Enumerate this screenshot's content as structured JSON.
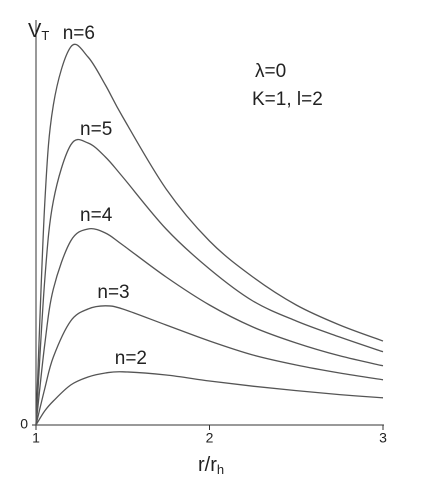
{
  "chart_data": {
    "type": "line",
    "ylabel": "V",
    "ylabel_sub": "T",
    "xlabel": "r/r",
    "xlabel_sub": "h",
    "annotations": [
      "λ=0",
      "K=1, l=2"
    ],
    "x": [
      1,
      1.05,
      1.1,
      1.2,
      1.3,
      1.4,
      1.5,
      1.75,
      2,
      2.25,
      2.5,
      2.75,
      3
    ],
    "series": [
      {
        "name": "n=6",
        "color": "#555555",
        "values": [
          0,
          5.5,
          8.0,
          9.45,
          9.2,
          8.5,
          7.7,
          5.9,
          4.6,
          3.7,
          3.0,
          2.5,
          2.1
        ]
      },
      {
        "name": "n=5",
        "color": "#555555",
        "values": [
          0,
          3.6,
          5.6,
          7.0,
          7.05,
          6.7,
          6.2,
          4.9,
          3.9,
          3.1,
          2.6,
          2.2,
          1.83
        ]
      },
      {
        "name": "n=4",
        "color": "#555555",
        "values": [
          0,
          2.0,
          3.4,
          4.6,
          4.9,
          4.8,
          4.5,
          3.7,
          3.0,
          2.45,
          2.05,
          1.73,
          1.48
        ]
      },
      {
        "name": "n=3",
        "color": "#555555",
        "values": [
          0,
          0.9,
          1.7,
          2.6,
          2.9,
          2.98,
          2.9,
          2.5,
          2.1,
          1.75,
          1.5,
          1.3,
          1.13
        ]
      },
      {
        "name": "n=2",
        "color": "#555555",
        "values": [
          0,
          0.35,
          0.6,
          1.0,
          1.2,
          1.3,
          1.33,
          1.25,
          1.1,
          0.97,
          0.86,
          0.76,
          0.68
        ]
      }
    ],
    "xlim": [
      1,
      3
    ],
    "xticks": [
      1,
      2,
      3
    ],
    "ylim": [
      0,
      10
    ],
    "yticks": [
      0
    ]
  }
}
